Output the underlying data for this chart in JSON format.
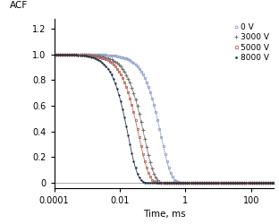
{
  "title": "",
  "xlabel": "Time, ms",
  "ylabel": "ACF",
  "series": [
    {
      "label": "0 V",
      "tau_c": 0.18,
      "beta": 1.4,
      "color": "#8899cc",
      "line_color": "#9aabcc",
      "marker": "o",
      "markersize": 1.8,
      "markerfacecolor": "none",
      "markeredgewidth": 0.6
    },
    {
      "label": "3000 V",
      "tau_c": 0.055,
      "beta": 1.4,
      "color": "#707070",
      "line_color": "#808080",
      "marker": "+",
      "markersize": 2.5,
      "markerfacecolor": "#707070",
      "markeredgewidth": 0.7
    },
    {
      "label": "5000 V",
      "tau_c": 0.038,
      "beta": 1.4,
      "color": "#c06050",
      "line_color": "#c07060",
      "marker": "s",
      "markersize": 1.8,
      "markerfacecolor": "none",
      "markeredgewidth": 0.6
    },
    {
      "label": "8000 V",
      "tau_c": 0.018,
      "beta": 1.5,
      "color": "#1a2a40",
      "line_color": "#2a3a50",
      "marker": ".",
      "markersize": 2.2,
      "markerfacecolor": "#1a2a40",
      "markeredgewidth": 0.5
    }
  ],
  "xticks": [
    0.0001,
    0.01,
    1,
    100
  ],
  "xtick_labels": [
    "0.0001",
    "0.01",
    "1",
    "100"
  ],
  "yticks": [
    0,
    0.2,
    0.4,
    0.6,
    0.8,
    1.0,
    1.2
  ],
  "ytick_labels": [
    "0",
    "0.2",
    "0.4",
    "0.6",
    "0.8",
    "1.0",
    "1.2"
  ],
  "background_color": "#ffffff",
  "fontsize": 7.5,
  "legend_fontsize": 6.5
}
